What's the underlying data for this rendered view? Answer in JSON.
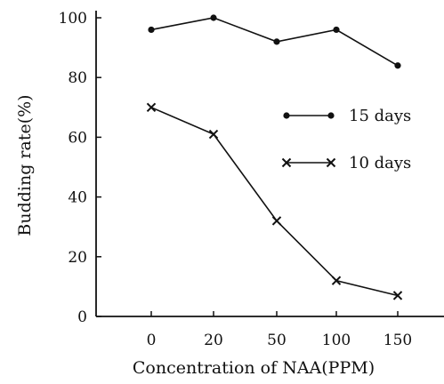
{
  "chart_data": {
    "type": "line",
    "title": "",
    "xlabel": "Concentration of NAA(PPM)",
    "ylabel": "Budding rate(%)",
    "categories": [
      "0",
      "20",
      "50",
      "100",
      "150"
    ],
    "ylim": [
      0,
      100
    ],
    "yticks": [
      "0",
      "20",
      "40",
      "60",
      "80",
      "100"
    ],
    "grid": false,
    "legend_position": "right",
    "series": [
      {
        "name": "15 days",
        "marker": "circle",
        "values": [
          96,
          100,
          92,
          96,
          84
        ]
      },
      {
        "name": "10 days",
        "marker": "cross",
        "values": [
          70,
          61,
          32,
          12,
          7
        ]
      }
    ]
  }
}
